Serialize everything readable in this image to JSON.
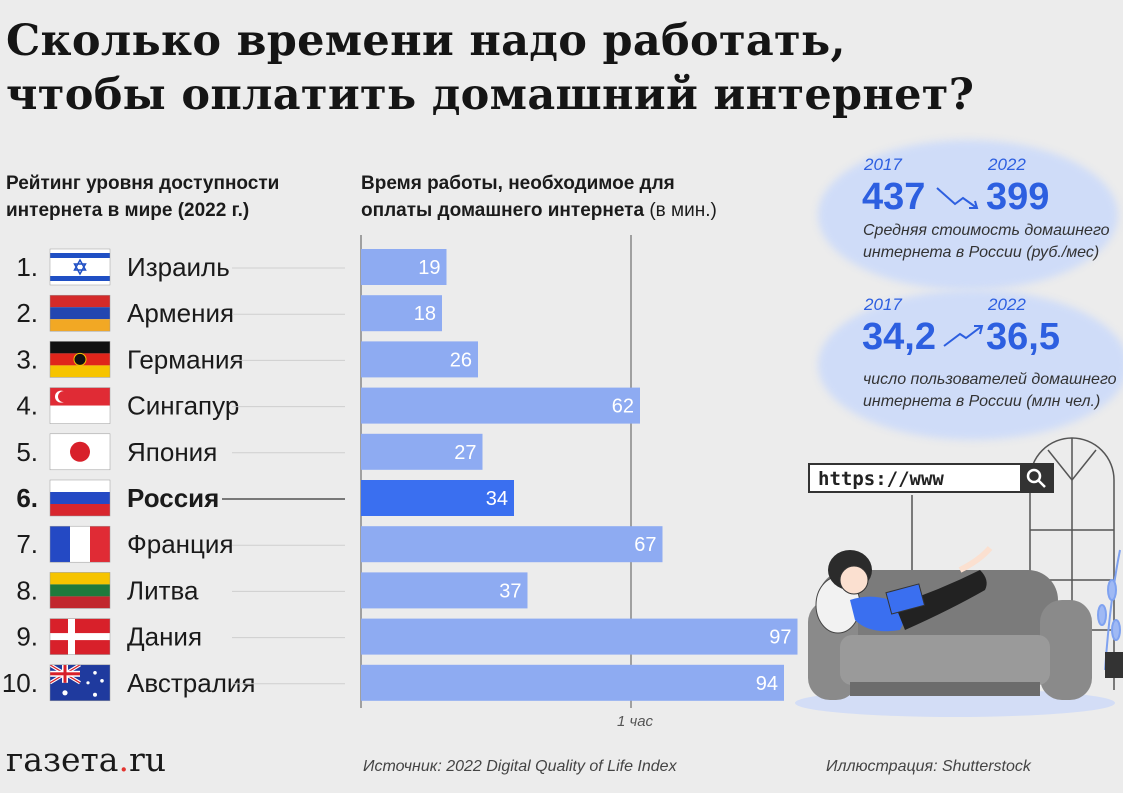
{
  "title": [
    "Сколько времени надо работать,",
    "чтобы оплатить домашний интернет?"
  ],
  "rank_header": [
    "Рейтинг уровня доступности",
    "интернета в мире (2022 г.)"
  ],
  "time_header": {
    "line1": "Время работы, необходимое для",
    "line2": "оплаты домашнего интернета",
    "unit": "(в мин.)"
  },
  "chart_data": {
    "type": "bar",
    "orientation": "horizontal",
    "categories": [
      "Израиль",
      "Армения",
      "Германия",
      "Сингапур",
      "Япония",
      "Россия",
      "Франция",
      "Литва",
      "Дания",
      "Австралия"
    ],
    "ranks": [
      "1.",
      "2.",
      "3.",
      "4.",
      "5.",
      "6.",
      "7.",
      "8.",
      "9.",
      "10."
    ],
    "values": [
      19,
      18,
      26,
      62,
      27,
      34,
      67,
      37,
      97,
      94
    ],
    "highlight": "Россия",
    "reference_line": {
      "value": 60,
      "label": "1 час"
    },
    "xlim": [
      0,
      97
    ],
    "colors": {
      "bar": "#8eabf2",
      "highlight": "#3a6ff0",
      "value_label": "#ffffff"
    }
  },
  "flags": [
    "israel-flag-icon",
    "armenia-flag-icon",
    "germany-flag-icon",
    "singapore-flag-icon",
    "japan-flag-icon",
    "russia-flag-icon",
    "france-flag-icon",
    "lithuania-flag-icon",
    "denmark-flag-icon",
    "australia-flag-icon"
  ],
  "stats": [
    {
      "year_from": "2017",
      "year_to": "2022",
      "value_from": "437",
      "value_to": "399",
      "desc": [
        "Средняя стоимость домашнего",
        "интернета в России (руб./мес)"
      ]
    },
    {
      "year_from": "2017",
      "year_to": "2022",
      "value_from": "34,2",
      "value_to": "36,5",
      "desc": [
        "число пользователей домашнего",
        "интернета в России (млн чел.)"
      ]
    }
  ],
  "illustration": {
    "url_text": "https://www"
  },
  "footer": {
    "logo_main": "газета",
    "logo_dot": ".",
    "logo_tld": "ru",
    "source": "Источник: 2022 Digital Quality of Life Index",
    "illustration_credit": "Иллюстрация: Shutterstock"
  }
}
